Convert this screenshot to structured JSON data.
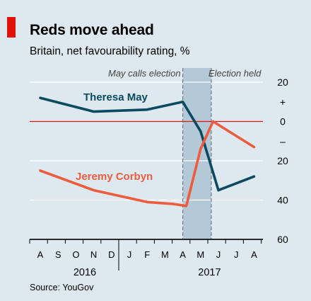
{
  "header": {
    "title": "Reds move ahead",
    "subtitle": "Britain, net favourability rating, %"
  },
  "source": "Source: YouGov",
  "chart_data": {
    "type": "line",
    "title": "Reds move ahead",
    "subtitle": "Britain, net favourability rating, %",
    "x_months": [
      "A",
      "S",
      "O",
      "N",
      "D",
      "J",
      "F",
      "M",
      "A",
      "M",
      "J",
      "J",
      "A"
    ],
    "x_years": [
      {
        "label": "2016",
        "month_index": 2.5
      },
      {
        "label": "2017",
        "month_index": 9.5
      }
    ],
    "y_ticks": [
      {
        "value": 20,
        "label": "20"
      },
      {
        "value": 10,
        "label": "+"
      },
      {
        "value": 0,
        "label": "0"
      },
      {
        "value": -10,
        "label": "–"
      },
      {
        "value": -20,
        "label": "20"
      },
      {
        "value": -40,
        "label": "40"
      },
      {
        "value": -60,
        "label": "60"
      }
    ],
    "ylim": [
      -60,
      20
    ],
    "grid": true,
    "zero_line_color": "#e3120b",
    "shaded_period": {
      "start": 8.0,
      "end": 9.6,
      "color": "#b4c9d8"
    },
    "annotations": [
      {
        "label": "May calls election",
        "x": 8.0
      },
      {
        "label": "Election held",
        "x": 9.6
      }
    ],
    "series": [
      {
        "name": "Theresa May",
        "color": "#0c4a61",
        "points": [
          [
            0,
            12
          ],
          [
            3,
            5
          ],
          [
            6,
            6
          ],
          [
            8,
            10
          ],
          [
            9,
            -5
          ],
          [
            10,
            -35
          ],
          [
            12,
            -28
          ]
        ]
      },
      {
        "name": "Jeremy Corbyn",
        "color": "#ee5c3e",
        "points": [
          [
            0,
            -25
          ],
          [
            3,
            -35
          ],
          [
            6,
            -41
          ],
          [
            7.5,
            -42
          ],
          [
            8.2,
            -43
          ],
          [
            9,
            -14
          ],
          [
            9.7,
            0
          ],
          [
            12,
            -13
          ]
        ]
      }
    ]
  }
}
